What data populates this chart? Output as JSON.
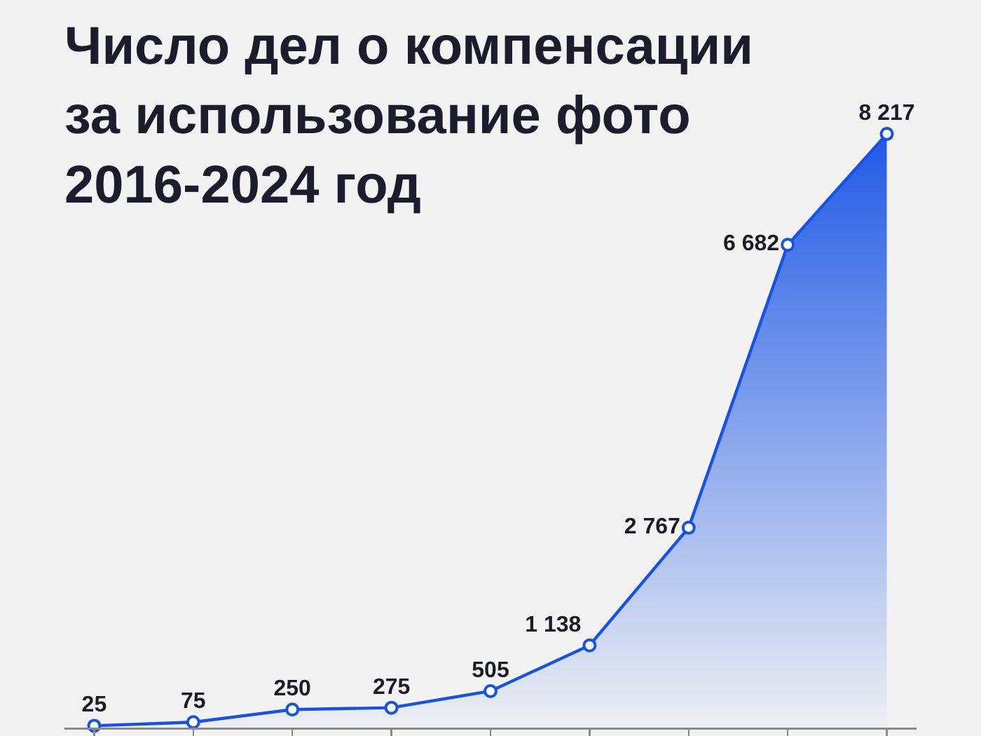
{
  "chart_data": {
    "type": "area",
    "title": "Число дел о компенсации\nза использование фото\n2016-2024 год",
    "categories": [
      null,
      null,
      null,
      null,
      null,
      null,
      null,
      null,
      null
    ],
    "values": [
      25,
      75,
      250,
      275,
      505,
      1138,
      2767,
      6682,
      8217
    ],
    "value_labels": [
      "25",
      "75",
      "250",
      "275",
      "505",
      "1 138",
      "2 767",
      "6 682",
      "8 217"
    ],
    "color": "#1652e6",
    "marker": "circle",
    "tick_labels": false
  }
}
